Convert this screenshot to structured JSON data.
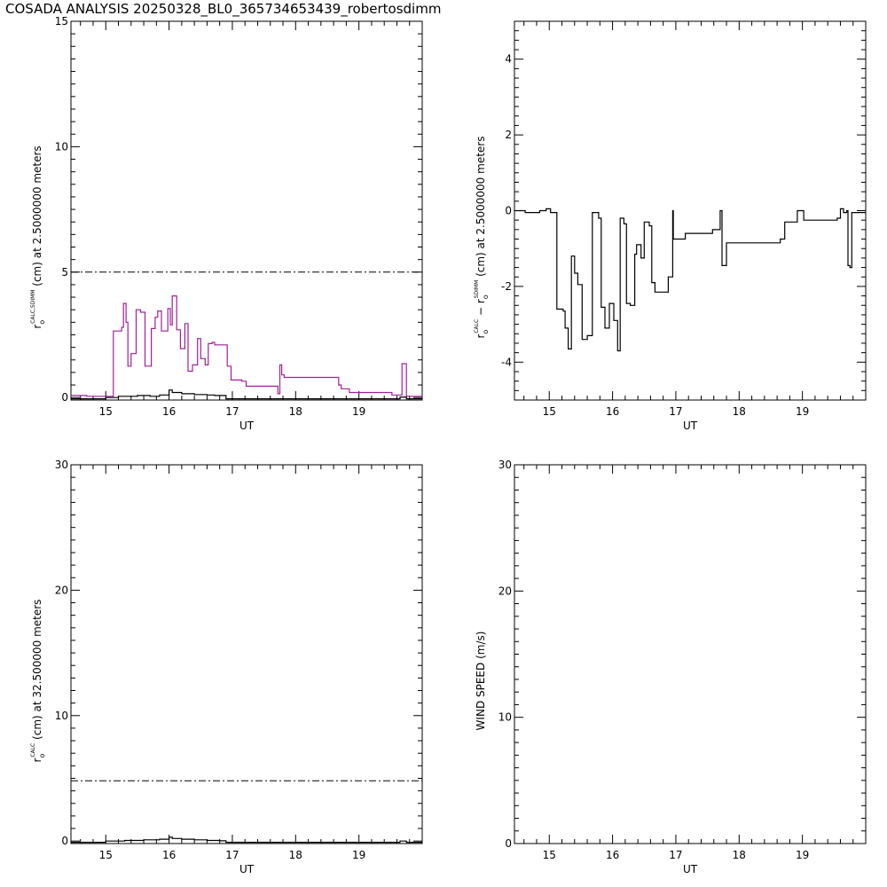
{
  "page": {
    "title": "COSADA ANALYSIS 20250328_BL0_365734653439_robertosdimm"
  },
  "colors": {
    "axis": "#000000",
    "calc": "#000000",
    "sdimm": "#a0209a"
  },
  "chart_data": [
    {
      "id": "tl",
      "type": "line",
      "xlabel": "UT",
      "ylabel_parts": {
        "r": "r",
        "o": "o",
        "sup": "CALC,SDIMM",
        "rest": "(cm)  at  2.5000000 meters"
      },
      "xlim": [
        14.45,
        20.0
      ],
      "ylim": [
        -0.1,
        15
      ],
      "xticks": [
        "15",
        "16",
        "17",
        "18",
        "19"
      ],
      "yticks": [
        "0",
        "5",
        "10",
        "15"
      ],
      "yticks_minor_step": 0.5,
      "ref_line": {
        "y": 5.0,
        "style": "dash-dot"
      },
      "series": [
        {
          "style": "steps",
          "color": "sdimm",
          "points": [
            [
              14.45,
              0.08
            ],
            [
              14.7,
              0.05
            ],
            [
              15.1,
              0.05
            ],
            [
              15.12,
              2.65
            ],
            [
              15.25,
              2.8
            ],
            [
              15.28,
              3.75
            ],
            [
              15.32,
              3.0
            ],
            [
              15.35,
              1.25
            ],
            [
              15.4,
              1.75
            ],
            [
              15.48,
              3.5
            ],
            [
              15.55,
              3.4
            ],
            [
              15.62,
              1.25
            ],
            [
              15.72,
              2.75
            ],
            [
              15.78,
              3.2
            ],
            [
              15.82,
              3.45
            ],
            [
              15.88,
              2.65
            ],
            [
              15.95,
              2.65
            ],
            [
              15.98,
              3.55
            ],
            [
              16.02,
              2.9
            ],
            [
              16.05,
              4.05
            ],
            [
              16.12,
              2.7
            ],
            [
              16.18,
              1.95
            ],
            [
              16.25,
              2.95
            ],
            [
              16.3,
              1.05
            ],
            [
              16.37,
              1.3
            ],
            [
              16.45,
              2.35
            ],
            [
              16.5,
              1.55
            ],
            [
              16.57,
              1.3
            ],
            [
              16.62,
              2.15
            ],
            [
              16.68,
              2.2
            ],
            [
              16.72,
              2.1
            ],
            [
              16.92,
              1.25
            ],
            [
              16.98,
              0.7
            ],
            [
              17.15,
              0.65
            ],
            [
              17.22,
              0.45
            ],
            [
              17.65,
              0.45
            ],
            [
              17.72,
              0.15
            ],
            [
              17.75,
              1.3
            ],
            [
              17.78,
              0.9
            ],
            [
              17.82,
              0.8
            ],
            [
              18.68,
              0.5
            ],
            [
              18.72,
              0.35
            ],
            [
              18.85,
              0.2
            ],
            [
              19.32,
              0.2
            ],
            [
              19.52,
              0.1
            ],
            [
              19.65,
              0.1
            ],
            [
              19.68,
              1.35
            ],
            [
              19.75,
              0.05
            ],
            [
              20.0,
              0.0
            ]
          ]
        },
        {
          "style": "steps",
          "color": "calc",
          "points": [
            [
              14.45,
              -0.05
            ],
            [
              14.8,
              -0.05
            ],
            [
              15.0,
              0.0
            ],
            [
              15.2,
              0.05
            ],
            [
              15.5,
              0.08
            ],
            [
              15.7,
              0.05
            ],
            [
              15.85,
              0.1
            ],
            [
              16.0,
              0.3
            ],
            [
              16.05,
              0.2
            ],
            [
              16.2,
              0.15
            ],
            [
              16.4,
              0.12
            ],
            [
              16.6,
              0.1
            ],
            [
              16.72,
              0.08
            ],
            [
              16.9,
              -0.05
            ],
            [
              19.6,
              -0.05
            ],
            [
              19.65,
              0.02
            ],
            [
              19.75,
              -0.05
            ],
            [
              20.0,
              -0.05
            ]
          ]
        }
      ]
    },
    {
      "id": "tr",
      "type": "line",
      "xlabel": "UT",
      "ylabel_parts": {
        "r": "r",
        "o": "o",
        "sup": "CALC",
        "mid": "−  r",
        "o2": "o",
        "sup2": "SDIMM",
        "rest": "(cm)  at  2.5000000 meters"
      },
      "xlim": [
        14.45,
        20.0
      ],
      "ylim": [
        -5,
        5
      ],
      "xticks": [
        "15",
        "16",
        "17",
        "18",
        "19"
      ],
      "yticks": [
        "-4",
        "-2",
        "0",
        "2",
        "4"
      ],
      "yticks_minor_step": 0.25,
      "series": [
        {
          "style": "steps",
          "color": "calc",
          "points": [
            [
              14.45,
              0.0
            ],
            [
              14.62,
              -0.05
            ],
            [
              14.78,
              -0.05
            ],
            [
              14.85,
              0.0
            ],
            [
              14.95,
              0.05
            ],
            [
              15.02,
              -0.05
            ],
            [
              15.12,
              -2.6
            ],
            [
              15.22,
              -2.65
            ],
            [
              15.25,
              -3.1
            ],
            [
              15.3,
              -3.65
            ],
            [
              15.35,
              -1.2
            ],
            [
              15.4,
              -1.65
            ],
            [
              15.45,
              -1.95
            ],
            [
              15.52,
              -3.4
            ],
            [
              15.6,
              -3.3
            ],
            [
              15.68,
              -0.05
            ],
            [
              15.72,
              -0.05
            ],
            [
              15.78,
              -0.2
            ],
            [
              15.82,
              -2.55
            ],
            [
              15.88,
              -3.1
            ],
            [
              15.95,
              -2.45
            ],
            [
              16.02,
              -2.9
            ],
            [
              16.08,
              -3.7
            ],
            [
              16.12,
              -0.2
            ],
            [
              16.18,
              -0.35
            ],
            [
              16.22,
              -2.45
            ],
            [
              16.28,
              -2.5
            ],
            [
              16.35,
              -1.15
            ],
            [
              16.38,
              -0.9
            ],
            [
              16.45,
              -1.25
            ],
            [
              16.5,
              -0.3
            ],
            [
              16.58,
              -0.4
            ],
            [
              16.62,
              -1.9
            ],
            [
              16.67,
              -2.15
            ],
            [
              16.75,
              -2.15
            ],
            [
              16.88,
              -1.75
            ],
            [
              16.95,
              0.0
            ],
            [
              16.96,
              -0.75
            ],
            [
              17.12,
              -0.75
            ],
            [
              17.15,
              -0.6
            ],
            [
              17.58,
              -0.5
            ],
            [
              17.7,
              0.0
            ],
            [
              17.73,
              -1.45
            ],
            [
              17.8,
              -0.85
            ],
            [
              18.65,
              -0.75
            ],
            [
              18.72,
              -0.3
            ],
            [
              18.85,
              -0.3
            ],
            [
              18.92,
              0.0
            ],
            [
              19.02,
              -0.25
            ],
            [
              19.55,
              -0.2
            ],
            [
              19.6,
              0.05
            ],
            [
              19.65,
              -0.05
            ],
            [
              19.7,
              -0.0
            ],
            [
              19.72,
              -1.45
            ],
            [
              19.75,
              -1.5
            ],
            [
              19.78,
              -0.05
            ],
            [
              20.0,
              -0.05
            ]
          ]
        }
      ]
    },
    {
      "id": "bl",
      "type": "line",
      "xlabel": "UT",
      "ylabel_parts": {
        "r": "r",
        "o": "o",
        "sup": "CALC",
        "rest": "(cm)  at  32.500000 meters"
      },
      "xlim": [
        14.45,
        20.0
      ],
      "ylim": [
        -0.2,
        30
      ],
      "xticks": [
        "15",
        "16",
        "17",
        "18",
        "19"
      ],
      "yticks": [
        "0",
        "10",
        "20",
        "30"
      ],
      "yticks_minor_step": 1,
      "ref_line": {
        "y": 4.8,
        "style": "dash-dot"
      },
      "series": [
        {
          "style": "steps",
          "color": "calc",
          "points": [
            [
              14.45,
              -0.1
            ],
            [
              14.8,
              -0.1
            ],
            [
              15.0,
              0.0
            ],
            [
              15.3,
              0.05
            ],
            [
              15.6,
              0.1
            ],
            [
              15.85,
              0.15
            ],
            [
              16.0,
              0.3
            ],
            [
              16.05,
              0.2
            ],
            [
              16.2,
              0.15
            ],
            [
              16.4,
              0.1
            ],
            [
              16.6,
              0.05
            ],
            [
              16.8,
              0.02
            ],
            [
              16.9,
              -0.1
            ],
            [
              19.6,
              -0.1
            ],
            [
              19.65,
              0.0
            ],
            [
              19.75,
              -0.1
            ],
            [
              20.0,
              -0.1
            ]
          ]
        }
      ]
    },
    {
      "id": "br",
      "type": "line",
      "xlabel": "UT",
      "ylabel_parts": {
        "text": "WIND SPEED (m/s)"
      },
      "xlim": [
        14.45,
        20.0
      ],
      "ylim": [
        0,
        30
      ],
      "xticks": [
        "15",
        "16",
        "17",
        "18",
        "19"
      ],
      "yticks": [
        "0",
        "10",
        "20",
        "30"
      ],
      "yticks_minor_step": 1,
      "series": []
    }
  ]
}
